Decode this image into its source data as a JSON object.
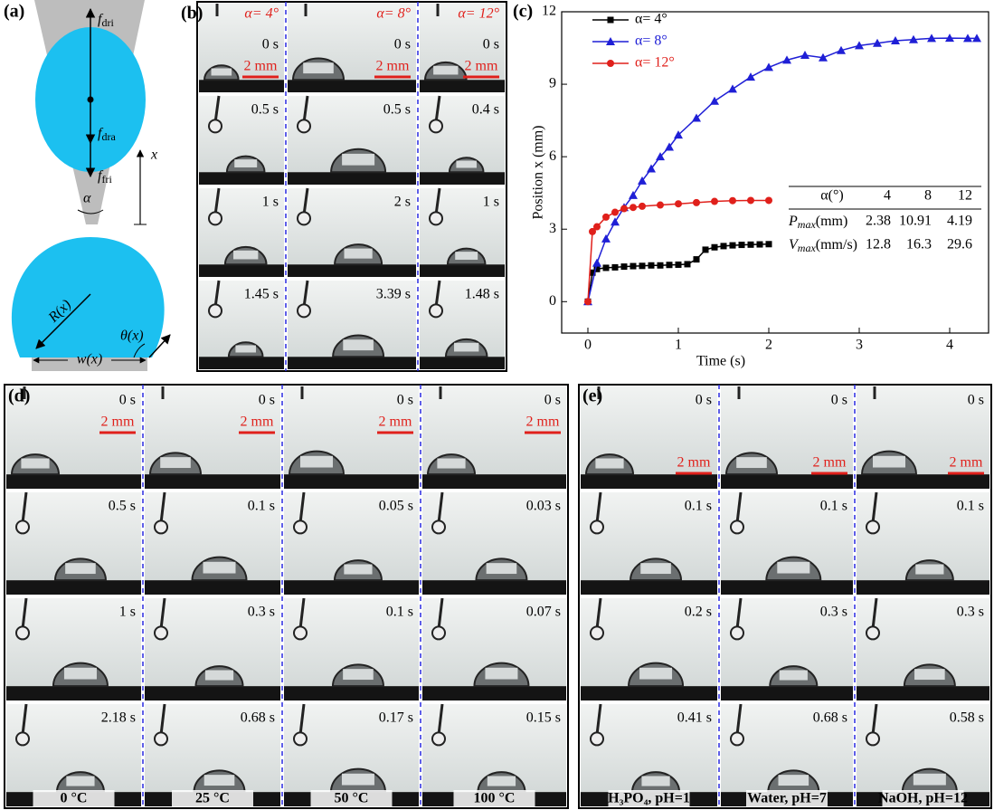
{
  "panel_a": {
    "label": "(a)",
    "f_dri": {
      "main": "f",
      "sub": "dri"
    },
    "f_dra": {
      "main": "f",
      "sub": "dra"
    },
    "f_fri": {
      "main": "f",
      "sub": "fri"
    },
    "x": "x",
    "alpha": "α",
    "radius": "R(x)",
    "theta": "θ(x)",
    "width": "w(x)"
  },
  "panel_b": {
    "label": "(b)",
    "scale_bar": "2 mm",
    "columns": [
      {
        "angle": "α= 4°",
        "times": [
          "0 s",
          "0.5 s",
          "1 s",
          "1.45 s"
        ]
      },
      {
        "angle": "α= 8°",
        "times": [
          "0 s",
          "0.5 s",
          "2 s",
          "3.39 s"
        ]
      },
      {
        "angle": "α= 12°",
        "times": [
          "0 s",
          "0.4 s",
          "1 s",
          "1.48 s"
        ]
      }
    ]
  },
  "chart_data": {
    "type": "line",
    "label": "(c)",
    "xlabel": "Time (s)",
    "ylabel": "Position x (mm)",
    "xlim": [
      -0.29,
      4.43
    ],
    "ylim": [
      -1.3,
      12
    ],
    "xticks": [
      0,
      1,
      2,
      3,
      4
    ],
    "yticks": [
      0,
      3,
      6,
      9,
      12
    ],
    "series": [
      {
        "name": "α= 4°",
        "color": "#000000",
        "marker": "square",
        "x": [
          0,
          0.05,
          0.1,
          0.2,
          0.3,
          0.4,
          0.5,
          0.6,
          0.7,
          0.8,
          0.9,
          1.0,
          1.1,
          1.2,
          1.3,
          1.4,
          1.5,
          1.6,
          1.7,
          1.8,
          1.9,
          2.0
        ],
        "values": [
          0,
          1.2,
          1.35,
          1.4,
          1.42,
          1.45,
          1.47,
          1.48,
          1.5,
          1.5,
          1.52,
          1.53,
          1.55,
          1.75,
          2.15,
          2.25,
          2.3,
          2.33,
          2.35,
          2.36,
          2.37,
          2.38
        ]
      },
      {
        "name": "α= 8°",
        "color": "#1f1fd6",
        "marker": "triangle",
        "x": [
          0,
          0.1,
          0.2,
          0.3,
          0.4,
          0.5,
          0.6,
          0.7,
          0.8,
          0.9,
          1.0,
          1.2,
          1.4,
          1.6,
          1.8,
          2.0,
          2.2,
          2.4,
          2.6,
          2.8,
          3.0,
          3.2,
          3.4,
          3.6,
          3.8,
          4.0,
          4.2,
          4.3
        ],
        "values": [
          0,
          1.6,
          2.6,
          3.3,
          3.9,
          4.4,
          5.0,
          5.5,
          6.0,
          6.4,
          6.9,
          7.6,
          8.3,
          8.8,
          9.3,
          9.7,
          10.0,
          10.2,
          10.1,
          10.4,
          10.6,
          10.7,
          10.8,
          10.85,
          10.9,
          10.91,
          10.9,
          10.9
        ]
      },
      {
        "name": "α= 12°",
        "color": "#e0201b",
        "marker": "circle",
        "x": [
          0,
          0.05,
          0.1,
          0.2,
          0.3,
          0.4,
          0.5,
          0.6,
          0.8,
          1.0,
          1.2,
          1.4,
          1.6,
          1.8,
          2.0
        ],
        "values": [
          0,
          2.9,
          3.1,
          3.5,
          3.7,
          3.85,
          3.9,
          3.95,
          4.0,
          4.05,
          4.1,
          4.15,
          4.18,
          4.19,
          4.19
        ]
      }
    ],
    "table": {
      "header": [
        "α(°)",
        "4",
        "8",
        "12"
      ],
      "rows": [
        {
          "label": {
            "main": "P",
            "sub": "max",
            "unit": "(mm)"
          },
          "cells": [
            "2.38",
            "10.91",
            "4.19"
          ]
        },
        {
          "label": {
            "main": "V",
            "sub": "max",
            "unit": "(mm/s)"
          },
          "cells": [
            "12.8",
            "16.3",
            "29.6"
          ]
        }
      ]
    }
  },
  "panel_d": {
    "label": "(d)",
    "scale_bar": "2 mm",
    "columns": [
      {
        "condition": "0 °C",
        "times": [
          "0 s",
          "0.5 s",
          "1 s",
          "2.18 s"
        ]
      },
      {
        "condition": "25 °C",
        "times": [
          "0 s",
          "0.1 s",
          "0.3 s",
          "0.68 s"
        ]
      },
      {
        "condition": "50 °C",
        "times": [
          "0 s",
          "0.05 s",
          "0.1 s",
          "0.17 s"
        ]
      },
      {
        "condition": "100 °C",
        "times": [
          "0 s",
          "0.03 s",
          "0.07 s",
          "0.15 s"
        ]
      }
    ]
  },
  "panel_e": {
    "label": "(e)",
    "scale_bar": "2 mm",
    "columns": [
      {
        "condition": "H₃PO₄, pH=1",
        "times": [
          "0 s",
          "0.1 s",
          "0.2 s",
          "0.41 s"
        ]
      },
      {
        "condition": "Water, pH=7",
        "times": [
          "0 s",
          "0.1 s",
          "0.3 s",
          "0.68 s"
        ]
      },
      {
        "condition": "NaOH, pH=12",
        "times": [
          "0 s",
          "0.1 s",
          "0.3 s",
          "0.58 s"
        ]
      }
    ]
  }
}
